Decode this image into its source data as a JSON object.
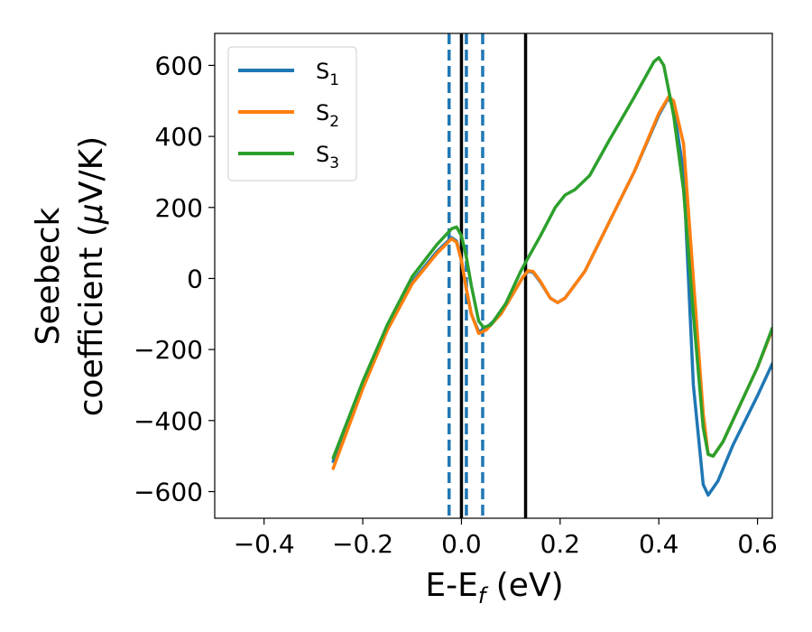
{
  "chart_data": {
    "type": "line",
    "xlabel": "E-E",
    "xlabel_sub": "f",
    "xlabel_unit": " (eV)",
    "ylabel_line1": "Seebeck",
    "ylabel_line2_pre": "coefficient  (",
    "ylabel_mu": "μ",
    "ylabel_line2_post": "V/K)",
    "xlim": [
      -0.5,
      0.63
    ],
    "ylim": [
      -675,
      690
    ],
    "xticks": [
      -0.4,
      -0.2,
      0.0,
      0.2,
      0.4,
      0.6
    ],
    "xtick_labels": [
      "−0.4",
      "−0.2",
      "0.0",
      "0.2",
      "0.4",
      "0.6"
    ],
    "yticks": [
      -600,
      -400,
      -200,
      0,
      200,
      400,
      600
    ],
    "ytick_labels": [
      "−600",
      "−400",
      "−200",
      "0",
      "200",
      "400",
      "600"
    ],
    "grid": false,
    "legend_position": "top-left",
    "vlines": [
      {
        "x": -0.025,
        "style": "dashed",
        "color": "#1f77b4"
      },
      {
        "x": 0.0,
        "style": "solid",
        "color": "#000000"
      },
      {
        "x": 0.01,
        "style": "dashed",
        "color": "#1f77b4"
      },
      {
        "x": 0.043,
        "style": "dashed",
        "color": "#1f77b4"
      },
      {
        "x": 0.13,
        "style": "solid",
        "color": "#000000"
      }
    ],
    "series": [
      {
        "name": "S",
        "name_sub": "1",
        "color": "#1f77b4",
        "points": [
          [
            -0.26,
            -515
          ],
          [
            -0.2,
            -300
          ],
          [
            -0.15,
            -140
          ],
          [
            -0.1,
            -10
          ],
          [
            -0.05,
            75
          ],
          [
            -0.02,
            115
          ],
          [
            -0.01,
            105
          ],
          [
            0.0,
            50
          ],
          [
            0.01,
            -30
          ],
          [
            0.02,
            -100
          ],
          [
            0.035,
            -150
          ],
          [
            0.05,
            -140
          ],
          [
            0.08,
            -100
          ],
          [
            0.11,
            -30
          ],
          [
            0.125,
            5
          ],
          [
            0.135,
            20
          ],
          [
            0.145,
            18
          ],
          [
            0.16,
            -10
          ],
          [
            0.18,
            -55
          ],
          [
            0.195,
            -68
          ],
          [
            0.21,
            -55
          ],
          [
            0.25,
            20
          ],
          [
            0.3,
            160
          ],
          [
            0.35,
            300
          ],
          [
            0.4,
            460
          ],
          [
            0.42,
            510
          ],
          [
            0.43,
            480
          ],
          [
            0.45,
            300
          ],
          [
            0.47,
            -300
          ],
          [
            0.49,
            -580
          ],
          [
            0.5,
            -610
          ],
          [
            0.52,
            -570
          ],
          [
            0.55,
            -470
          ],
          [
            0.6,
            -330
          ],
          [
            0.63,
            -240
          ]
        ]
      },
      {
        "name": "S",
        "name_sub": "2",
        "color": "#ff7f0e",
        "points": [
          [
            -0.26,
            -535
          ],
          [
            -0.2,
            -310
          ],
          [
            -0.15,
            -145
          ],
          [
            -0.1,
            -15
          ],
          [
            -0.05,
            70
          ],
          [
            -0.02,
            112
          ],
          [
            -0.01,
            102
          ],
          [
            0.0,
            50
          ],
          [
            0.01,
            -30
          ],
          [
            0.02,
            -100
          ],
          [
            0.035,
            -155
          ],
          [
            0.05,
            -145
          ],
          [
            0.08,
            -100
          ],
          [
            0.11,
            -30
          ],
          [
            0.125,
            5
          ],
          [
            0.135,
            22
          ],
          [
            0.145,
            20
          ],
          [
            0.16,
            -8
          ],
          [
            0.18,
            -55
          ],
          [
            0.195,
            -68
          ],
          [
            0.21,
            -55
          ],
          [
            0.25,
            20
          ],
          [
            0.3,
            160
          ],
          [
            0.35,
            300
          ],
          [
            0.4,
            465
          ],
          [
            0.42,
            512
          ],
          [
            0.43,
            500
          ],
          [
            0.45,
            380
          ],
          [
            0.47,
            0
          ],
          [
            0.49,
            -380
          ],
          [
            0.5,
            -495
          ],
          [
            0.51,
            -500
          ],
          [
            0.53,
            -460
          ],
          [
            0.56,
            -370
          ],
          [
            0.6,
            -250
          ],
          [
            0.63,
            -145
          ]
        ]
      },
      {
        "name": "S",
        "name_sub": "3",
        "color": "#2ca02c",
        "points": [
          [
            -0.26,
            -505
          ],
          [
            -0.2,
            -290
          ],
          [
            -0.15,
            -130
          ],
          [
            -0.1,
            5
          ],
          [
            -0.05,
            95
          ],
          [
            -0.02,
            140
          ],
          [
            -0.01,
            145
          ],
          [
            0.0,
            120
          ],
          [
            0.01,
            60
          ],
          [
            0.02,
            -20
          ],
          [
            0.035,
            -120
          ],
          [
            0.045,
            -138
          ],
          [
            0.06,
            -130
          ],
          [
            0.09,
            -70
          ],
          [
            0.12,
            20
          ],
          [
            0.13,
            45
          ],
          [
            0.16,
            120
          ],
          [
            0.19,
            200
          ],
          [
            0.21,
            235
          ],
          [
            0.23,
            250
          ],
          [
            0.26,
            290
          ],
          [
            0.3,
            390
          ],
          [
            0.35,
            510
          ],
          [
            0.39,
            610
          ],
          [
            0.4,
            622
          ],
          [
            0.41,
            600
          ],
          [
            0.43,
            460
          ],
          [
            0.45,
            250
          ],
          [
            0.47,
            -100
          ],
          [
            0.49,
            -420
          ],
          [
            0.5,
            -495
          ],
          [
            0.51,
            -500
          ],
          [
            0.53,
            -460
          ],
          [
            0.56,
            -370
          ],
          [
            0.6,
            -250
          ],
          [
            0.63,
            -140
          ]
        ]
      }
    ]
  }
}
